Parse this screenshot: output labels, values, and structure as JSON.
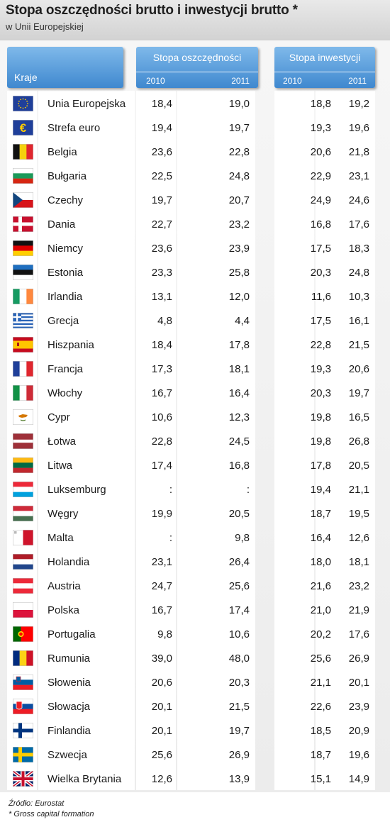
{
  "header": {
    "title": "Stopa oszczędności brutto i inwestycji brutto *",
    "subtitle": "w Unii Europejskiej"
  },
  "columns": {
    "country": "Kraje",
    "savings": "Stopa oszczędności",
    "investment": "Stopa inwestycji",
    "year_a": "2010",
    "year_b": "2011"
  },
  "chart_data": {
    "type": "table",
    "title": "Stopa oszczędności brutto i inwestycji brutto *",
    "subtitle": "w Unii Europejskiej",
    "columns": [
      "Kraje",
      "Stopa oszczędności 2010",
      "Stopa oszczędności 2011",
      "Stopa inwestycji 2010",
      "Stopa inwestycji 2011"
    ],
    "rows": [
      {
        "country": "Unia Europejska",
        "flag": "eu",
        "s2010": "18,4",
        "s2011": "19,0",
        "i2010": "18,8",
        "i2011": "19,2"
      },
      {
        "country": "Strefa euro",
        "flag": "euro",
        "s2010": "19,4",
        "s2011": "19,7",
        "i2010": "19,3",
        "i2011": "19,6"
      },
      {
        "country": "Belgia",
        "flag": "be",
        "s2010": "23,6",
        "s2011": "22,8",
        "i2010": "20,6",
        "i2011": "21,8"
      },
      {
        "country": "Bułgaria",
        "flag": "bg",
        "s2010": "22,5",
        "s2011": "24,8",
        "i2010": "22,9",
        "i2011": "23,1"
      },
      {
        "country": "Czechy",
        "flag": "cz",
        "s2010": "19,7",
        "s2011": "20,7",
        "i2010": "24,9",
        "i2011": "24,6"
      },
      {
        "country": "Dania",
        "flag": "dk",
        "s2010": "22,7",
        "s2011": "23,2",
        "i2010": "16,8",
        "i2011": "17,6"
      },
      {
        "country": "Niemcy",
        "flag": "de",
        "s2010": "23,6",
        "s2011": "23,9",
        "i2010": "17,5",
        "i2011": "18,3"
      },
      {
        "country": "Estonia",
        "flag": "ee",
        "s2010": "23,3",
        "s2011": "25,8",
        "i2010": "20,3",
        "i2011": "24,8"
      },
      {
        "country": "Irlandia",
        "flag": "ie",
        "s2010": "13,1",
        "s2011": "12,0",
        "i2010": "11,6",
        "i2011": "10,3"
      },
      {
        "country": "Grecja",
        "flag": "gr",
        "s2010": "4,8",
        "s2011": "4,4",
        "i2010": "17,5",
        "i2011": "16,1"
      },
      {
        "country": "Hiszpania",
        "flag": "es",
        "s2010": "18,4",
        "s2011": "17,8",
        "i2010": "22,8",
        "i2011": "21,5"
      },
      {
        "country": "Francja",
        "flag": "fr",
        "s2010": "17,3",
        "s2011": "18,1",
        "i2010": "19,3",
        "i2011": "20,6"
      },
      {
        "country": "Włochy",
        "flag": "it",
        "s2010": "16,7",
        "s2011": "16,4",
        "i2010": "20,3",
        "i2011": "19,7"
      },
      {
        "country": "Cypr",
        "flag": "cy",
        "s2010": "10,6",
        "s2011": "12,3",
        "i2010": "19,8",
        "i2011": "16,5"
      },
      {
        "country": "Łotwa",
        "flag": "lv",
        "s2010": "22,8",
        "s2011": "24,5",
        "i2010": "19,8",
        "i2011": "26,8"
      },
      {
        "country": "Litwa",
        "flag": "lt",
        "s2010": "17,4",
        "s2011": "16,8",
        "i2010": "17,8",
        "i2011": "20,5"
      },
      {
        "country": "Luksemburg",
        "flag": "lu",
        "s2010": ":",
        "s2011": ":",
        "i2010": "19,4",
        "i2011": "21,1"
      },
      {
        "country": "Węgry",
        "flag": "hu",
        "s2010": "19,9",
        "s2011": "20,5",
        "i2010": "18,7",
        "i2011": "19,5"
      },
      {
        "country": "Malta",
        "flag": "mt",
        "s2010": ":",
        "s2011": "9,8",
        "i2010": "16,4",
        "i2011": "12,6"
      },
      {
        "country": "Holandia",
        "flag": "nl",
        "s2010": "23,1",
        "s2011": "26,4",
        "i2010": "18,0",
        "i2011": "18,1"
      },
      {
        "country": "Austria",
        "flag": "at",
        "s2010": "24,7",
        "s2011": "25,6",
        "i2010": "21,6",
        "i2011": "23,2"
      },
      {
        "country": "Polska",
        "flag": "pl",
        "s2010": "16,7",
        "s2011": "17,4",
        "i2010": "21,0",
        "i2011": "21,9"
      },
      {
        "country": "Portugalia",
        "flag": "pt",
        "s2010": "9,8",
        "s2011": "10,6",
        "i2010": "20,2",
        "i2011": "17,6"
      },
      {
        "country": "Rumunia",
        "flag": "ro",
        "s2010": "39,0",
        "s2011": "48,0",
        "i2010": "25,6",
        "i2011": "26,9"
      },
      {
        "country": "Słowenia",
        "flag": "si",
        "s2010": "20,6",
        "s2011": "20,3",
        "i2010": "21,1",
        "i2011": "20,1"
      },
      {
        "country": "Słowacja",
        "flag": "sk",
        "s2010": "20,1",
        "s2011": "21,5",
        "i2010": "22,6",
        "i2011": "23,9"
      },
      {
        "country": "Finlandia",
        "flag": "fi",
        "s2010": "20,1",
        "s2011": "19,7",
        "i2010": "18,5",
        "i2011": "20,9"
      },
      {
        "country": "Szwecja",
        "flag": "se",
        "s2010": "25,6",
        "s2011": "26,9",
        "i2010": "18,7",
        "i2011": "19,6"
      },
      {
        "country": "Wielka Brytania",
        "flag": "gb",
        "s2010": "12,6",
        "s2011": "13,9",
        "i2010": "15,1",
        "i2011": "14,9"
      }
    ]
  },
  "footer": {
    "source": "Źródło: Eurostat",
    "note": "* Gross capital formation"
  },
  "colors": {
    "header_blue_top": "#7fb9ea",
    "header_blue_bottom": "#3f88cf"
  }
}
